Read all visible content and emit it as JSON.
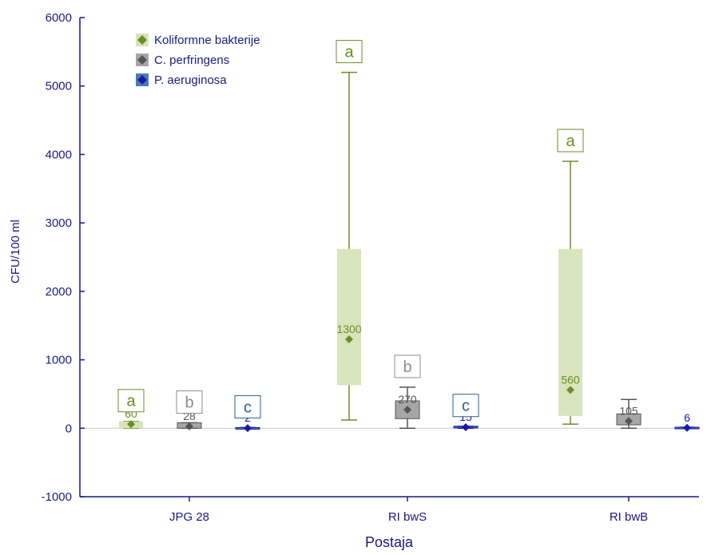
{
  "chart_data": {
    "type": "box",
    "title": "",
    "xlabel": "Postaja",
    "ylabel": "CFU/100 ml",
    "ylim": [
      -1000,
      6000
    ],
    "yticks": [
      "-1000",
      "0",
      "1000",
      "2000",
      "3000",
      "4000",
      "5000",
      "6000"
    ],
    "categories": [
      "JPG 28",
      "RI bwS",
      "RI bwB"
    ],
    "legend_position": "top-left",
    "series": [
      {
        "name": "Koliformne bakterije",
        "color": "#6b8e23",
        "box_color": "#d8e4bc",
        "boxes": [
          {
            "min": 0,
            "q1": 0,
            "median": 60,
            "q3": 100,
            "max": 100,
            "median_label": "60",
            "group_letter": "a"
          },
          {
            "min": 120,
            "q1": 630,
            "median": 1300,
            "q3": 2620,
            "max": 5200,
            "median_label": "1300",
            "group_letter": "a"
          },
          {
            "min": 60,
            "q1": 180,
            "median": 560,
            "q3": 2620,
            "max": 3900,
            "median_label": "560",
            "group_letter": "a"
          }
        ]
      },
      {
        "name": "C. perfringens",
        "color": "#555555",
        "box_color": "#a6a6a6",
        "boxes": [
          {
            "min": 0,
            "q1": 0,
            "median": 28,
            "q3": 80,
            "max": 80,
            "median_label": "28",
            "group_letter": "b"
          },
          {
            "min": 0,
            "q1": 140,
            "median": 270,
            "q3": 400,
            "max": 600,
            "median_label": "270",
            "group_letter": "b"
          },
          {
            "min": 0,
            "q1": 50,
            "median": 105,
            "q3": 210,
            "max": 420,
            "median_label": "105",
            "group_letter": ""
          }
        ]
      },
      {
        "name": "P. aeruginosa",
        "color": "#1a1aa0",
        "box_color": "#4a7ab8",
        "boxes": [
          {
            "min": 0,
            "q1": 0,
            "median": 2,
            "q3": 10,
            "max": 10,
            "median_label": "2",
            "group_letter": "c"
          },
          {
            "min": 0,
            "q1": 5,
            "median": 15,
            "q3": 30,
            "max": 30,
            "median_label": "15",
            "group_letter": "c"
          },
          {
            "min": 0,
            "q1": 0,
            "median": 6,
            "q3": 15,
            "max": 15,
            "median_label": "6",
            "group_letter": ""
          }
        ]
      }
    ]
  },
  "colors": {
    "axis": "#1a1a80",
    "letter_a": "#6b8e23",
    "letter_b": "#8c8c8c",
    "letter_c": "#2f5f8f"
  }
}
